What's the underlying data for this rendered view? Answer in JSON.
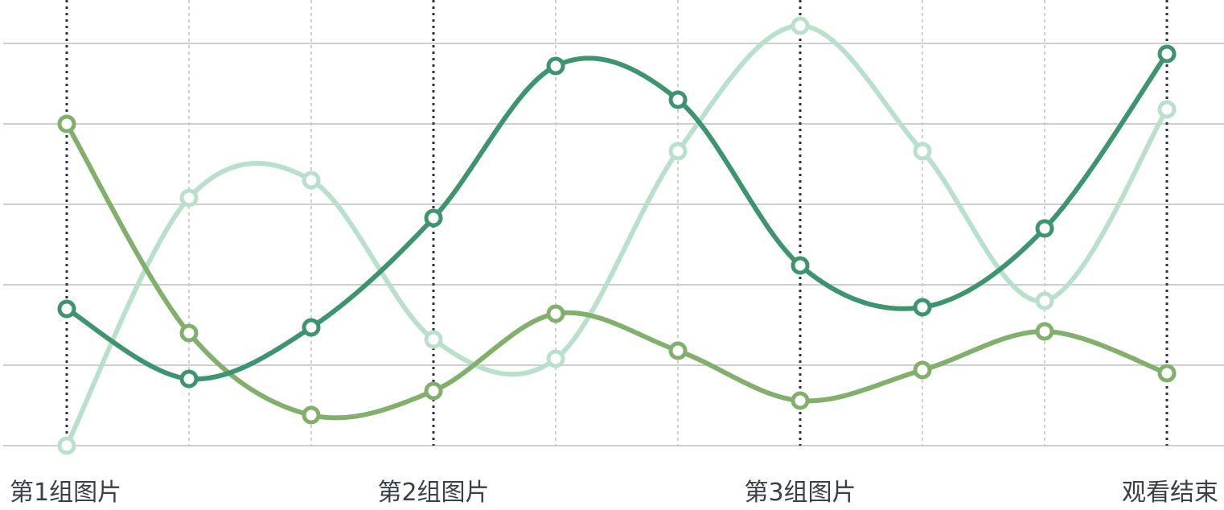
{
  "chart_data": {
    "type": "line",
    "smooth": true,
    "markers": "hollow-circle",
    "grid": true,
    "legend": "none",
    "ylim": [
      0,
      5
    ],
    "x": [
      0,
      1,
      2,
      3,
      4,
      5,
      6,
      7,
      8,
      9
    ],
    "x_tick_labels": [
      {
        "x": 0,
        "label": "第1组图片"
      },
      {
        "x": 3,
        "label": "第2组图片"
      },
      {
        "x": 6,
        "label": "第3组图片"
      },
      {
        "x": 9,
        "label": "观看结束"
      }
    ],
    "major_vlines_at": [
      0,
      3,
      6,
      9
    ],
    "series": [
      {
        "color": "#3f9470",
        "values": [
          1.7,
          0.83,
          1.47,
          2.83,
          4.72,
          4.3,
          2.24,
          1.72,
          2.7,
          4.87
        ]
      },
      {
        "color": "#82b06c",
        "values": [
          4.0,
          1.4,
          0.38,
          0.68,
          1.64,
          1.18,
          0.56,
          0.94,
          1.42,
          0.9
        ]
      },
      {
        "color": "#b9e0cc",
        "values": [
          0.0,
          3.08,
          3.3,
          1.32,
          1.08,
          3.66,
          5.22,
          3.66,
          1.8,
          4.18
        ]
      }
    ]
  }
}
